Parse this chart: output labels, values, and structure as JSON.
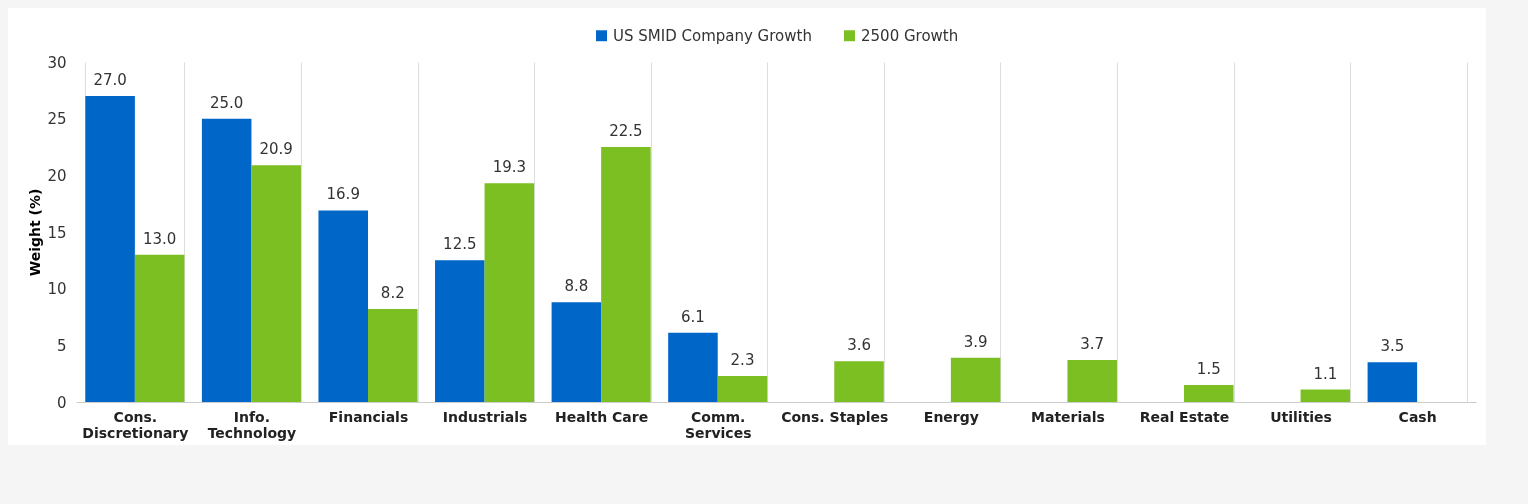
{
  "chart_data": {
    "type": "bar",
    "ylabel": "Weight (%)",
    "categories": [
      "Cons. Discretionary",
      "Info. Technology",
      "Financials",
      "Industrials",
      "Health Care",
      "Comm. Services",
      "Cons. Staples",
      "Energy",
      "Materials",
      "Real Estate",
      "Utilities",
      "Cash"
    ],
    "series": [
      {
        "name": "US SMID Company Growth",
        "color": "#0066c8",
        "values": [
          27.0,
          25.0,
          16.9,
          12.5,
          8.8,
          6.1,
          null,
          null,
          null,
          null,
          null,
          3.5
        ],
        "value_labels": [
          "27.0",
          "25.0",
          "16.9",
          "12.5",
          "8.8",
          "6.1",
          null,
          null,
          null,
          null,
          null,
          "3.5"
        ]
      },
      {
        "name": "2500 Growth",
        "color": "#7bbf22",
        "values": [
          13.0,
          20.9,
          8.2,
          19.3,
          22.5,
          2.3,
          3.6,
          3.9,
          3.7,
          1.5,
          1.1,
          null
        ],
        "value_labels": [
          "13.0",
          "20.9",
          "8.2",
          "19.3",
          "22.5",
          "2.3",
          "3.6",
          "3.9",
          "3.7",
          "1.5",
          "1.1",
          null
        ]
      }
    ],
    "ylim": [
      0,
      30
    ],
    "yticks": [
      0,
      5,
      10,
      15,
      20,
      25,
      30
    ],
    "grid": "x",
    "legend": "top"
  }
}
